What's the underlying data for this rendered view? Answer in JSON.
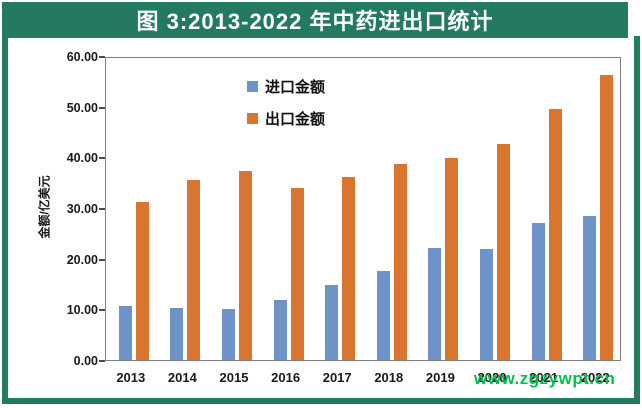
{
  "header": {
    "title": "图 3:2013-2022 年中药进出口统计"
  },
  "chart_data": {
    "type": "bar",
    "title": "图 3:2013-2022 年中药进出口统计",
    "categories": [
      "2013",
      "2014",
      "2015",
      "2016",
      "2017",
      "2018",
      "2019",
      "2020",
      "2021",
      "2022"
    ],
    "series": [
      {
        "name": "进口金额",
        "color": "#6d93c8",
        "values": [
          10.8,
          10.4,
          10.2,
          11.9,
          15.0,
          17.7,
          22.4,
          22.1,
          27.4,
          28.8
        ]
      },
      {
        "name": "出口金额",
        "color": "#d9752f",
        "values": [
          31.4,
          35.9,
          37.7,
          34.2,
          36.5,
          39.1,
          40.3,
          43.0,
          50.0,
          56.9
        ]
      }
    ],
    "xlabel": "",
    "ylabel": "金额/亿美元",
    "ylim": [
      0,
      60
    ],
    "ytick_labels": [
      "0.00",
      "10.00",
      "20.00",
      "30.00",
      "40.00",
      "50.00",
      "60.00"
    ],
    "grid": false,
    "legend_position": "inside-top"
  },
  "watermark": {
    "text": "www.zgzywpt.cn",
    "color": "#00bf50"
  },
  "colors": {
    "frame_green": "#247a61",
    "plot_border_gray": "#7f7f7f",
    "axis_text": "#1a1a1a",
    "title_text": "#ffffff"
  }
}
